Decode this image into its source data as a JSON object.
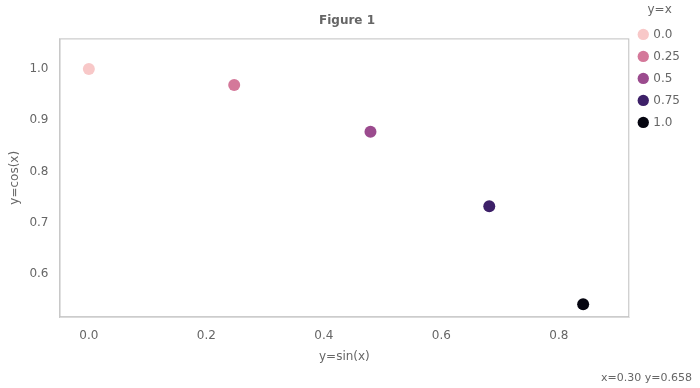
{
  "chart_data": {
    "type": "scatter",
    "title": "Figure 1",
    "xlabel": "y=sin(x)",
    "ylabel": "y=cos(x)",
    "legend_title": "y=x",
    "series": [
      {
        "name": "0.0",
        "color": "#f8c8c8",
        "x": [
          0.0
        ],
        "values": [
          1.0
        ]
      },
      {
        "name": "0.25",
        "color": "#d4789a",
        "x": [
          0.24740395925452294
        ],
        "values": [
          0.9689124217106447
        ]
      },
      {
        "name": "0.5",
        "color": "#9b4b8e",
        "x": [
          0.479425538604203
        ],
        "values": [
          0.8775825618903728
        ]
      },
      {
        "name": "0.75",
        "color": "#3d2068",
        "x": [
          0.6816387600233341
        ],
        "values": [
          0.7316888688738209
        ]
      },
      {
        "name": "1.0",
        "color": "#050510",
        "x": [
          0.8414709848078965
        ],
        "values": [
          0.5403023058681398
        ]
      }
    ],
    "xlim": [
      -0.05,
      0.92
    ],
    "ylim": [
      0.515,
      1.06
    ],
    "xticks": [
      {
        "value": 0,
        "label": "0.0"
      },
      0.2,
      0.4,
      0.6,
      0.8
    ],
    "yticks": [
      0.6,
      0.7,
      0.8,
      0.9,
      {
        "value": 1,
        "label": "1.0"
      }
    ],
    "grid": false,
    "legend": "upper right",
    "marker": "circle",
    "annotations": [
      "x=0.30 y=0.658"
    ]
  }
}
